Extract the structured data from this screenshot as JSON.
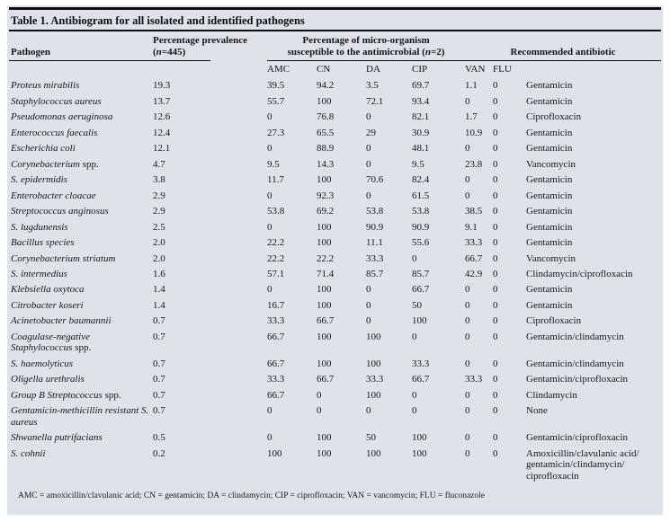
{
  "table": {
    "title": "Table 1. Antibiogram for all isolated and identified pathogens",
    "columns": {
      "pathogen": "Pathogen",
      "prevalence_line1": "Percentage prevalence",
      "prevalence_line2": "(n=445)",
      "susceptibility_line1": "Percentage of micro-organism",
      "susceptibility_line2": "susceptible to the antimicrobial (n=2)",
      "recommended": "Recommended antibiotic",
      "antimicrobials": [
        "AMC",
        "CN",
        "DA",
        "CIP",
        "VAN",
        "FLU"
      ]
    },
    "rows": [
      {
        "pathogen_italic": "Proteus mirabilis",
        "pathogen_roman": "",
        "prevalence": "19.3",
        "amc": "39.5",
        "cn": "94.2",
        "da": "3.5",
        "cip": "69.7",
        "van": "1.1",
        "flu": "0",
        "recommended": "Gentamicin"
      },
      {
        "pathogen_italic": "Staphylococcus aureus",
        "pathogen_roman": "",
        "prevalence": "13.7",
        "amc": "55.7",
        "cn": "100",
        "da": "72.1",
        "cip": "93.4",
        "van": "0",
        "flu": "0",
        "recommended": "Gentamicin"
      },
      {
        "pathogen_italic": "Pseudomonas aeruginosa",
        "pathogen_roman": "",
        "prevalence": "12.6",
        "amc": "0",
        "cn": "76.8",
        "da": "0",
        "cip": "82.1",
        "van": "1.7",
        "flu": "0",
        "recommended": "Ciprofloxacin"
      },
      {
        "pathogen_italic": "Enterococcus faecalis",
        "pathogen_roman": "",
        "prevalence": "12.4",
        "amc": "27.3",
        "cn": "65.5",
        "da": "29",
        "cip": "30.9",
        "van": "10.9",
        "flu": "0",
        "recommended": "Gentamicin"
      },
      {
        "pathogen_italic": "Escherichia coli",
        "pathogen_roman": "",
        "prevalence": "12.1",
        "amc": "0",
        "cn": "88.9",
        "da": "0",
        "cip": "48.1",
        "van": "0",
        "flu": "0",
        "recommended": "Gentamicin"
      },
      {
        "pathogen_italic": "Corynebacterium",
        "pathogen_roman": "spp.",
        "prevalence": "4.7",
        "amc": "9.5",
        "cn": "14.3",
        "da": "0",
        "cip": "9.5",
        "van": "23.8",
        "flu": "0",
        "recommended": "Vancomycin"
      },
      {
        "pathogen_italic": "S. epidermidis",
        "pathogen_roman": "",
        "prevalence": "3.8",
        "amc": "11.7",
        "cn": "100",
        "da": "70.6",
        "cip": "82.4",
        "van": "0",
        "flu": "0",
        "recommended": "Gentamicin"
      },
      {
        "pathogen_italic": "Enterobacter cloacae",
        "pathogen_roman": "",
        "prevalence": "2.9",
        "amc": "0",
        "cn": "92.3",
        "da": "0",
        "cip": "61.5",
        "van": "0",
        "flu": "0",
        "recommended": "Gentamicin"
      },
      {
        "pathogen_italic": "Streptococcus anginosus",
        "pathogen_roman": "",
        "prevalence": "2.9",
        "amc": "53.8",
        "cn": "69.2",
        "da": "53.8",
        "cip": "53.8",
        "van": "38.5",
        "flu": "0",
        "recommended": "Gentamicin"
      },
      {
        "pathogen_italic": "S. lugdunensis",
        "pathogen_roman": "",
        "prevalence": "2.5",
        "amc": "0",
        "cn": "100",
        "da": "90.9",
        "cip": "90.9",
        "van": "9.1",
        "flu": "0",
        "recommended": "Gentamicin"
      },
      {
        "pathogen_italic": "Bacillus species",
        "pathogen_roman": "",
        "prevalence": "2.0",
        "amc": "22.2",
        "cn": "100",
        "da": "11.1",
        "cip": "55.6",
        "van": "33.3",
        "flu": "0",
        "recommended": "Gentamicin"
      },
      {
        "pathogen_italic": "Corynebacterium striatum",
        "pathogen_roman": "",
        "prevalence": "2.0",
        "amc": "22.2",
        "cn": "22.2",
        "da": "33.3",
        "cip": "0",
        "van": "66.7",
        "flu": "0",
        "recommended": "Vancomycin"
      },
      {
        "pathogen_italic": "S. intermedius",
        "pathogen_roman": "",
        "prevalence": "1.6",
        "amc": "57.1",
        "cn": "71.4",
        "da": "85.7",
        "cip": "85.7",
        "van": "42.9",
        "flu": "0",
        "recommended": "Clindamycin/ciprofloxacin"
      },
      {
        "pathogen_italic": "Klebsiella oxytoca",
        "pathogen_roman": "",
        "prevalence": "1.4",
        "amc": "0",
        "cn": "100",
        "da": "0",
        "cip": "66.7",
        "van": "0",
        "flu": "0",
        "recommended": "Gentamicin"
      },
      {
        "pathogen_italic": "Citrobacter koseri",
        "pathogen_roman": "",
        "prevalence": "1.4",
        "amc": "16.7",
        "cn": "100",
        "da": "0",
        "cip": "50",
        "van": "0",
        "flu": "0",
        "recommended": "Gentamicin"
      },
      {
        "pathogen_italic": "Acinetobacter baumannii",
        "pathogen_roman": "",
        "prevalence": "0.7",
        "amc": "33.3",
        "cn": "66.7",
        "da": "0",
        "cip": "100",
        "van": "0",
        "flu": "0",
        "recommended": "Ciprofloxacin"
      },
      {
        "pathogen_italic": "Coagulase-negative Staphylococcus",
        "pathogen_roman": "spp.",
        "prevalence": "0.7",
        "amc": "66.7",
        "cn": "100",
        "da": "100",
        "cip": "0",
        "van": "0",
        "flu": "0",
        "recommended": "Gentamicin/clindamycin"
      },
      {
        "pathogen_italic": "S. haemolyticus",
        "pathogen_roman": "",
        "prevalence": "0.7",
        "amc": "66.7",
        "cn": "100",
        "da": "100",
        "cip": "33.3",
        "van": "0",
        "flu": "0",
        "recommended": "Gentamicin/clindamycin"
      },
      {
        "pathogen_italic": "Oligella urethralis",
        "pathogen_roman": "",
        "prevalence": "0.7",
        "amc": "33.3",
        "cn": "66.7",
        "da": "33.3",
        "cip": "66.7",
        "van": "33.3",
        "flu": "0",
        "recommended": "Gentamicin/ciprofloxacin"
      },
      {
        "pathogen_italic": "Group B Streptococcus",
        "pathogen_roman": "spp.",
        "prevalence": "0.7",
        "amc": "66.7",
        "cn": "0",
        "da": "100",
        "cip": "0",
        "van": "0",
        "flu": "0",
        "recommended": "Clindamycin"
      },
      {
        "pathogen_italic": "Gentamicin-methicillin resistant S. aureus",
        "pathogen_roman": "",
        "prevalence": "0.7",
        "amc": "0",
        "cn": "0",
        "da": "0",
        "cip": "0",
        "van": "0",
        "flu": "0",
        "recommended": "None"
      },
      {
        "pathogen_italic": "Shwanella putrifacians",
        "pathogen_roman": "",
        "prevalence": "0.5",
        "amc": "0",
        "cn": "100",
        "da": "50",
        "cip": "100",
        "van": "0",
        "flu": "0",
        "recommended": "Gentamicin/ciprofloxacin"
      },
      {
        "pathogen_italic": "S. cohnii",
        "pathogen_roman": "",
        "prevalence": "0.2",
        "amc": "100",
        "cn": "100",
        "da": "100",
        "cip": "100",
        "van": "0",
        "flu": "0",
        "recommended": "Amoxicillin/clavulanic acid/gentamicin/clindamycin/ciprofloxacin"
      }
    ],
    "footnote": "AMC = amoxicillin/clavulanic acid; CN = gentamicin; DA = clindamycin; CIP = ciprofloxacin; VAN = vancomycin; FLU = fluconazole"
  },
  "colors": {
    "panel_bg": "#dfe2ea",
    "rule": "#0c0c12",
    "text": "#17171f"
  }
}
